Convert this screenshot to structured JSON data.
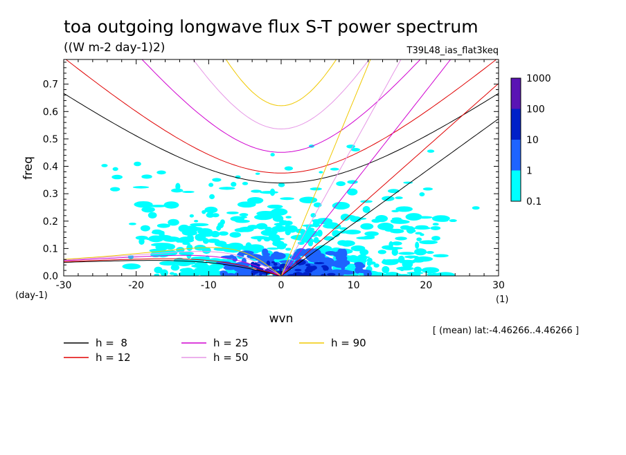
{
  "title": "toa outgoing longwave flux S-T power spectrum",
  "subtitle": "((W m-2 day-1)2)",
  "run_label": "T39L48_ias_flat3keq",
  "mean_label": "[ (mean) lat:-4.46266..4.46266 ]",
  "chart_data": {
    "type": "heatmap",
    "xlabel": "wvn",
    "ylabel": "freq",
    "x_unit": "(1)",
    "y_unit": "(day-1)",
    "xlim": [
      -30,
      30
    ],
    "ylim": [
      0,
      0.79
    ],
    "x_ticks": [
      -30,
      -20,
      -10,
      0,
      10,
      20,
      30
    ],
    "y_ticks": [
      0.0,
      0.1,
      0.2,
      0.3,
      0.4,
      0.5,
      0.6,
      0.7
    ],
    "y_tick_labels": [
      "0.0",
      "0.1",
      "0.2",
      "0.3",
      "0.4",
      "0.5",
      "0.6",
      "0.7"
    ],
    "colorbar": {
      "levels": [
        "0.1",
        "1",
        "10",
        "100",
        "1000"
      ],
      "colors": [
        "#00ffff",
        "#1e64ff",
        "#0020c8",
        "#5a14b4"
      ]
    },
    "contour_regions": [
      {
        "level": "0.1-1",
        "color": "#00ffff",
        "x_range": [
          -20,
          22
        ],
        "freq_range": [
          0.0,
          0.35
        ]
      },
      {
        "level": "1-10",
        "color": "#1e64ff",
        "x_range": [
          -8,
          12
        ],
        "freq_range": [
          0.0,
          0.1
        ]
      },
      {
        "level": "10-100",
        "color": "#0020c8",
        "x_range": [
          -4,
          8
        ],
        "freq_range": [
          0.0,
          0.06
        ]
      }
    ],
    "series": [
      {
        "name": "h =  8",
        "color": "#000000"
      },
      {
        "name": "h = 12",
        "color": "#e00000"
      },
      {
        "name": "h = 25",
        "color": "#d000d0"
      },
      {
        "name": "h = 50",
        "color": "#e696e6"
      },
      {
        "name": "h = 90",
        "color": "#f0c800"
      }
    ]
  }
}
